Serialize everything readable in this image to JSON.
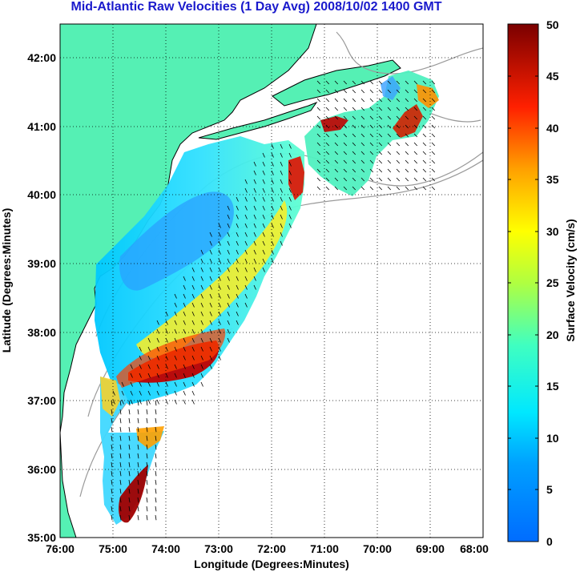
{
  "title": "Mid-Atlantic Raw Velocities (1 Day Avg) 2008/10/02 1400 GMT",
  "map": {
    "xlabel": "Longitude (Degrees:Minutes)",
    "ylabel": "Latitude (Degrees:Minutes)",
    "x_ticks": [
      "76:00",
      "75:00",
      "74:00",
      "73:00",
      "72:00",
      "71:00",
      "70:00",
      "69:00",
      "68:00"
    ],
    "y_ticks": [
      "42:00",
      "41:00",
      "40:00",
      "39:00",
      "38:00",
      "37:00",
      "36:00",
      "35:00"
    ],
    "lon_range": [
      -76,
      -68
    ],
    "lat_range": [
      35,
      42.5
    ],
    "grid": "dotted",
    "land_color": "#55f0b4",
    "coast_color": "#000000",
    "bathymetry_color": "#9a9a9a"
  },
  "colorbar": {
    "label": "Surface Velocity (cm/s)",
    "ticks": [
      "50",
      "45",
      "40",
      "35",
      "30",
      "25",
      "20",
      "15",
      "10",
      "5",
      "0"
    ],
    "range": [
      0,
      50
    ]
  }
}
